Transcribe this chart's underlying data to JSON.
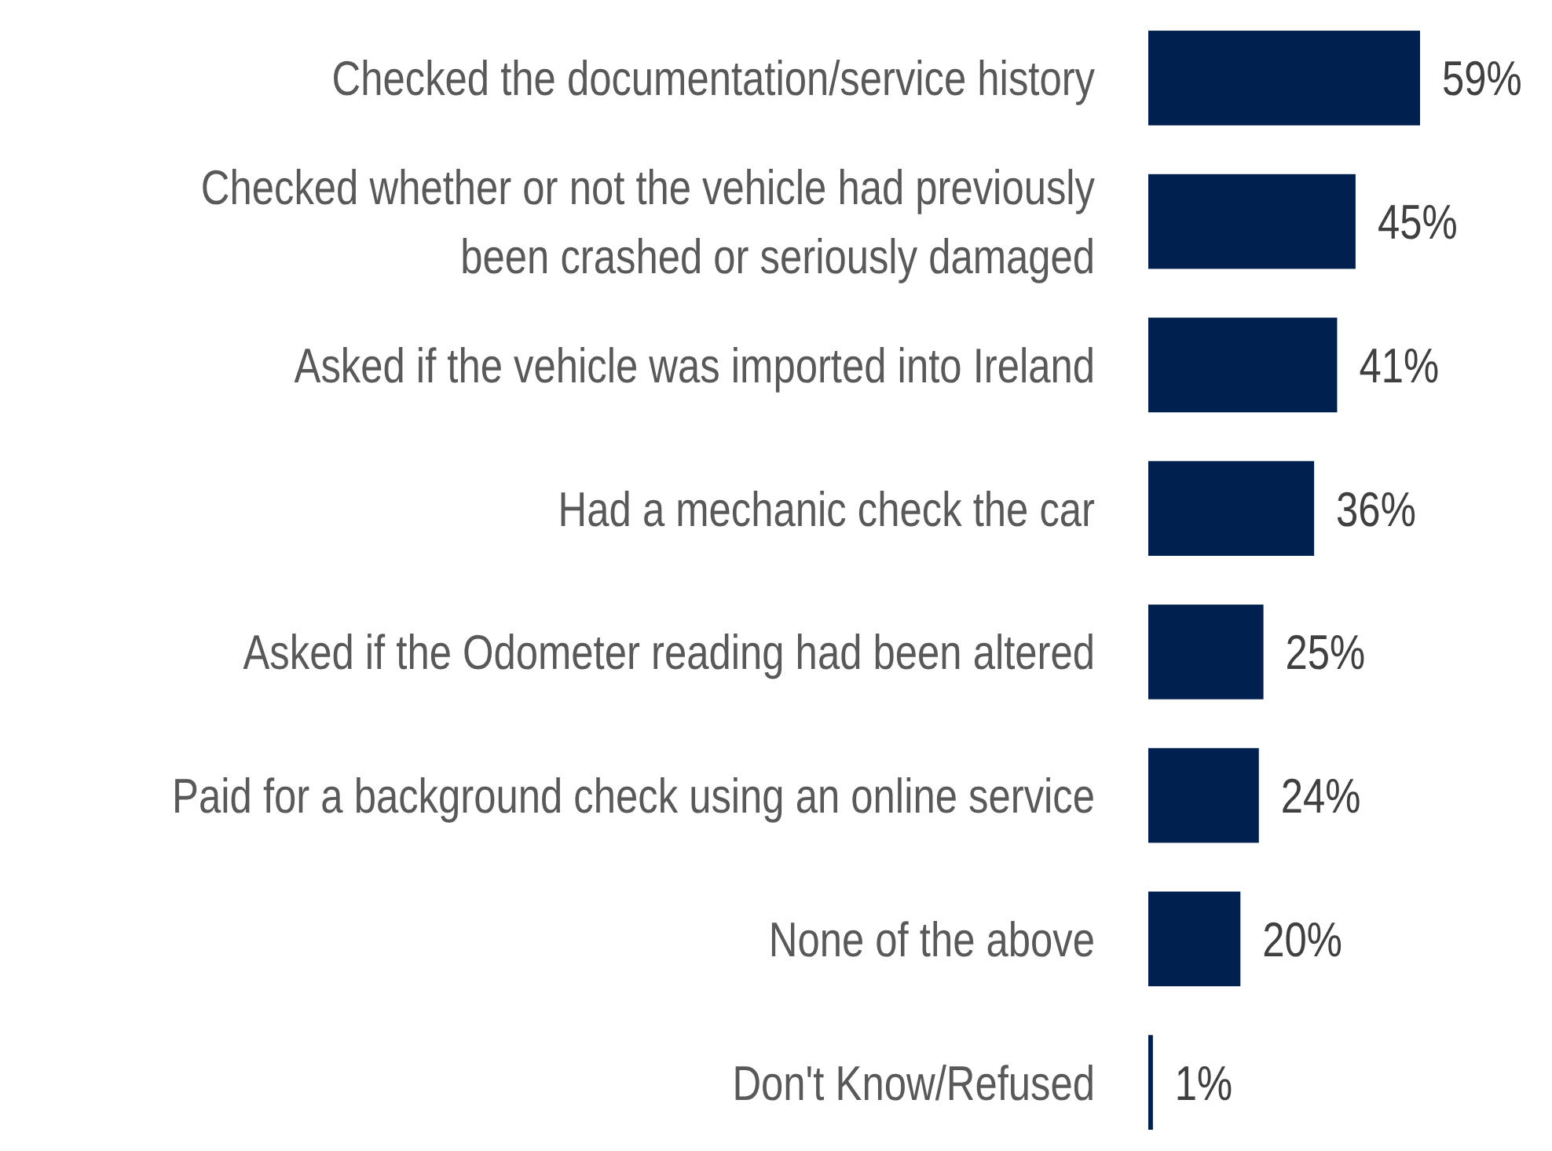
{
  "chart_data": {
    "type": "bar",
    "orientation": "horizontal",
    "categories": [
      "Checked the documentation/service history",
      "Checked whether or not the vehicle had previously\nbeen crashed or seriously damaged",
      "Asked if the vehicle was imported into Ireland",
      "Had a mechanic check the car",
      "Asked if the Odometer reading had been altered",
      "Paid for a background check using an online service",
      "None of the above",
      "Don't Know/Refused"
    ],
    "values": [
      59,
      45,
      41,
      36,
      25,
      24,
      20,
      1
    ],
    "value_labels": [
      "59%",
      "45%",
      "41%",
      "36%",
      "25%",
      "24%",
      "20%",
      "1%"
    ],
    "color": "#002050"
  }
}
